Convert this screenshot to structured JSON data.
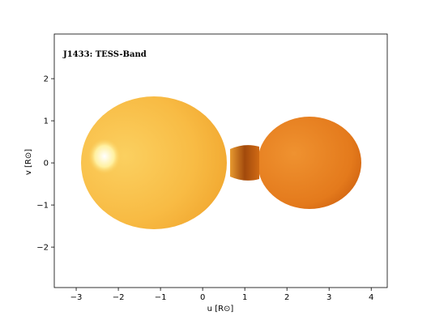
{
  "chart_data": {
    "type": "image",
    "annotation": "J1433: TESS-Band",
    "x_label": "u [R⊙]",
    "y_label": "v [R⊙]",
    "xlim": [
      -3.52,
      4.38
    ],
    "ylim": [
      -2.96,
      3.06
    ],
    "xticks": [
      {
        "value": -3,
        "label": "−3"
      },
      {
        "value": -2,
        "label": "−2"
      },
      {
        "value": -1,
        "label": "−1"
      },
      0,
      1,
      2,
      3,
      4
    ],
    "yticks": [
      {
        "value": -2,
        "label": "−2"
      },
      {
        "value": -1,
        "label": "−1"
      },
      0,
      1,
      2
    ]
  }
}
